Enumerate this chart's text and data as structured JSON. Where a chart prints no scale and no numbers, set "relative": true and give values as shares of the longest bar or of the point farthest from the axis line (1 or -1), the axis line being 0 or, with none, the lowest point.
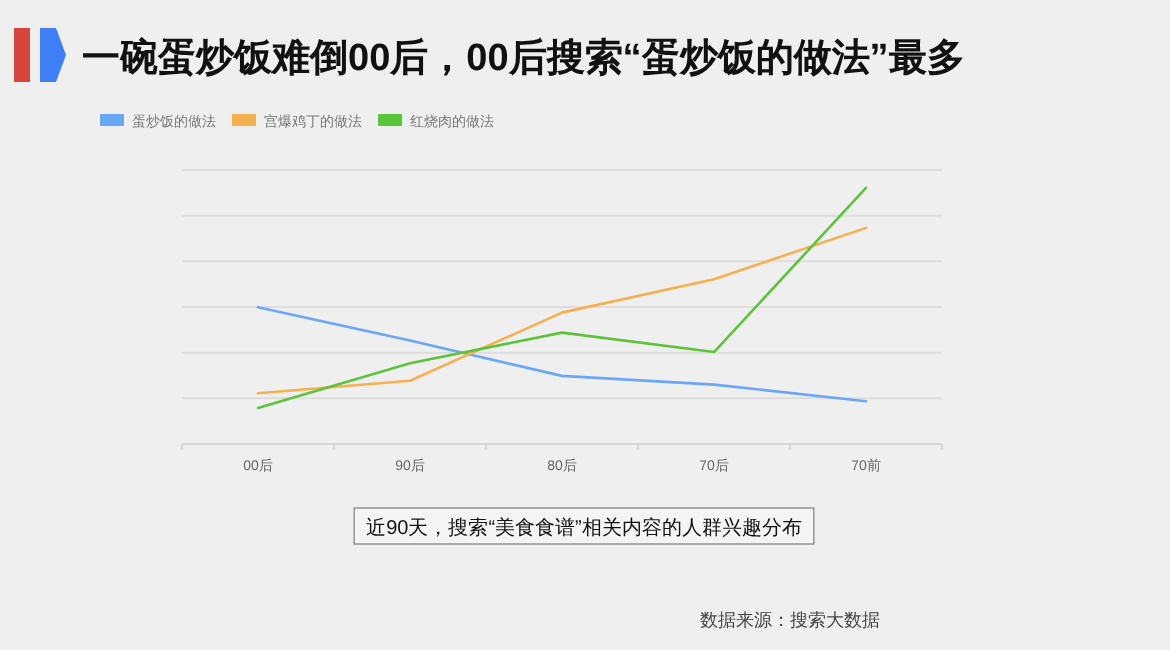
{
  "chart_data": {
    "type": "line",
    "title": "一碗蛋炒饭难倒00后，00后搜索“蛋炒饭的做法”最多",
    "categories": [
      "00后",
      "90后",
      "80后",
      "70后",
      "70前"
    ],
    "relative": true,
    "grid": "y",
    "legend": "top left",
    "series": [
      {
        "name": "蛋炒饭的做法",
        "color": "#6aa8f7",
        "values": [
          0.534,
          0.404,
          0.266,
          0.232,
          0.167
        ]
      },
      {
        "name": "宫爆鸡丁的做法",
        "color": "#f5b04f",
        "values": [
          0.198,
          0.247,
          0.513,
          0.643,
          0.844
        ]
      },
      {
        "name": "红烧肉的做法",
        "color": "#5cc43a",
        "values": [
          0.141,
          0.315,
          0.435,
          0.359,
          1.0
        ]
      }
    ],
    "annotations": [
      "近90天，搜索“美食食谱”相关内容的人群兴趣分布",
      "数据来源：搜索大数据"
    ]
  }
}
